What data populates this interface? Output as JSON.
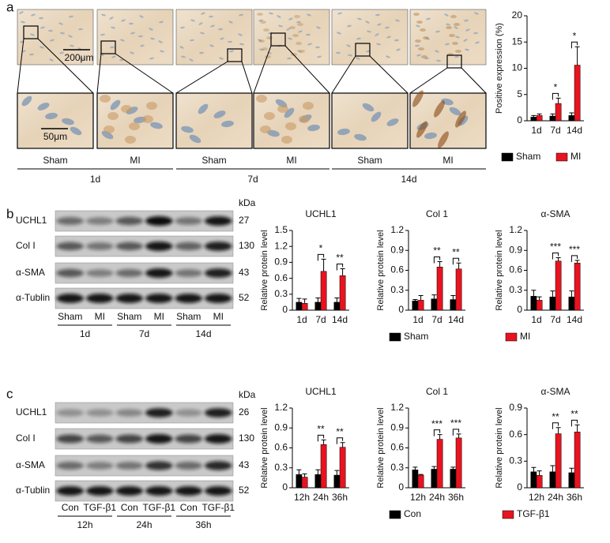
{
  "panel_labels": [
    "a",
    "b",
    "c"
  ],
  "histology": {
    "scale_bar_top": "200μm",
    "scale_bar_bottom": "50μm",
    "groups": [
      "Sham",
      "MI",
      "Sham",
      "MI",
      "Sham",
      "MI"
    ],
    "times": [
      "1d",
      "7d",
      "14d"
    ]
  },
  "blot_b": {
    "proteins": [
      "UCHL1",
      "Col I",
      "α-SMA",
      "α-Tublin"
    ],
    "kda_title": "kDa",
    "kda": [
      27,
      130,
      43,
      52
    ],
    "groups": [
      "Sham",
      "MI",
      "Sham",
      "MI",
      "Sham",
      "MI"
    ],
    "times": [
      "1d",
      "7d",
      "14d"
    ]
  },
  "blot_c": {
    "proteins": [
      "UCHL1",
      "Col I",
      "α-SMA",
      "α-Tublin"
    ],
    "kda_title": "kDa",
    "kda": [
      26,
      130,
      43,
      52
    ],
    "groups": [
      "Con",
      "TGF-β1",
      "Con",
      "TGF-β1",
      "Con",
      "TGF-β1"
    ],
    "times": [
      "12h",
      "24h",
      "36h"
    ]
  },
  "chart_data": [
    {
      "type": "bar",
      "ylabel": "Positive expression (%)",
      "categories": [
        "1d",
        "7d",
        "14d"
      ],
      "panels": [
        {
          "ylim": [
            0,
            20
          ],
          "yticks": [
            0,
            5,
            10,
            15,
            20
          ],
          "significance": [
            null,
            "*",
            "*"
          ]
        }
      ],
      "series": [
        {
          "name": "Sham",
          "color": "#000000",
          "values": [
            [
              0.7,
              0.9,
              1.0
            ]
          ],
          "errors": [
            [
              0.3,
              0.4,
              0.5
            ]
          ]
        },
        {
          "name": "MI",
          "color": "#e8131f",
          "values": [
            [
              1.0,
              3.3,
              10.6
            ]
          ],
          "errors": [
            [
              0.3,
              1.0,
              3.5
            ]
          ]
        }
      ]
    },
    {
      "type": "bar",
      "ylabel": "Relative protein level",
      "categories": [
        "1d",
        "7d",
        "14d"
      ],
      "panels": [
        {
          "title": "UCHL1",
          "ylim": [
            0,
            1.5
          ],
          "yticks": [
            0,
            0.3,
            0.6,
            0.9,
            1.2,
            1.5
          ],
          "significance": [
            null,
            "*",
            "**"
          ]
        },
        {
          "title": "Col 1",
          "ylim": [
            0,
            1.2
          ],
          "yticks": [
            0,
            0.3,
            0.6,
            0.9,
            1.2
          ],
          "significance": [
            null,
            "**",
            "**"
          ]
        },
        {
          "title": "α-SMA",
          "ylim": [
            0,
            1.2
          ],
          "yticks": [
            0,
            0.3,
            0.6,
            0.9,
            1.2
          ],
          "significance": [
            null,
            "***",
            "***"
          ]
        }
      ],
      "series": [
        {
          "name": "Sham",
          "color": "#000000",
          "values": [
            [
              0.15,
              0.15,
              0.15
            ],
            [
              0.14,
              0.17,
              0.16
            ],
            [
              0.21,
              0.2,
              0.2
            ]
          ],
          "errors": [
            [
              0.07,
              0.08,
              0.08
            ],
            [
              0.02,
              0.06,
              0.06
            ],
            [
              0.09,
              0.09,
              0.09
            ]
          ]
        },
        {
          "name": "MI",
          "color": "#e8131f",
          "values": [
            [
              0.13,
              0.73,
              0.65
            ],
            [
              0.15,
              0.65,
              0.62
            ],
            [
              0.15,
              0.74,
              0.71
            ]
          ],
          "errors": [
            [
              0.08,
              0.23,
              0.13
            ],
            [
              0.07,
              0.08,
              0.09
            ],
            [
              0.05,
              0.05,
              0.04
            ]
          ]
        }
      ]
    },
    {
      "type": "bar",
      "ylabel": "Relative protein level",
      "categories": [
        "12h",
        "24h",
        "36h"
      ],
      "panels": [
        {
          "title": "UCHL1",
          "ylim": [
            0,
            1.2
          ],
          "yticks": [
            0,
            0.3,
            0.6,
            0.9,
            1.2
          ],
          "significance": [
            null,
            "**",
            "**"
          ]
        },
        {
          "title": "Col 1",
          "ylim": [
            0,
            1.2
          ],
          "yticks": [
            0,
            0.3,
            0.6,
            0.9,
            1.2
          ],
          "significance": [
            null,
            "***",
            "***"
          ]
        },
        {
          "title": "α-SMA",
          "ylim": [
            0,
            0.9
          ],
          "yticks": [
            0,
            0.3,
            0.6,
            0.9
          ],
          "significance": [
            null,
            "**",
            "**"
          ]
        }
      ],
      "series": [
        {
          "name": "Con",
          "color": "#000000",
          "values": [
            [
              0.2,
              0.2,
              0.19
            ],
            [
              0.27,
              0.28,
              0.28
            ],
            [
              0.18,
              0.18,
              0.17
            ]
          ],
          "errors": [
            [
              0.07,
              0.07,
              0.07
            ],
            [
              0.04,
              0.04,
              0.03
            ],
            [
              0.05,
              0.07,
              0.05
            ]
          ]
        },
        {
          "name": "TGF-β1",
          "color": "#e8131f",
          "values": [
            [
              0.16,
              0.65,
              0.61
            ],
            [
              0.19,
              0.73,
              0.75
            ],
            [
              0.14,
              0.61,
              0.63
            ]
          ],
          "errors": [
            [
              0.05,
              0.07,
              0.07
            ],
            [
              0.01,
              0.07,
              0.06
            ],
            [
              0.05,
              0.07,
              0.08
            ]
          ]
        }
      ]
    }
  ]
}
